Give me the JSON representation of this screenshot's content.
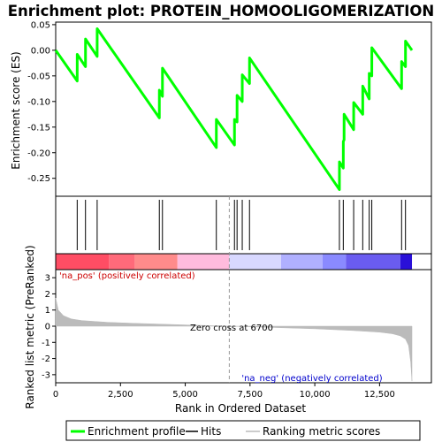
{
  "chart_data": {
    "type": "line",
    "title": "Enrichment plot: PROTEIN_HOMOOLIGOMERIZATION",
    "x_axis": {
      "label": "Rank in Ordered Dataset",
      "range": [
        0,
        14500
      ],
      "ticks": [
        0,
        2500,
        5000,
        7500,
        10000,
        12500
      ],
      "tick_labels": [
        "0",
        "2,500",
        "5,000",
        "7,500",
        "10,000",
        "12,500"
      ]
    },
    "es_panel": {
      "ylabel": "Enrichment score (ES)",
      "ylim": [
        -0.285,
        0.055
      ],
      "yticks": [
        0.05,
        0.0,
        -0.05,
        -0.1,
        -0.15,
        -0.2,
        -0.25
      ],
      "ytick_labels": [
        "0.05",
        "0.00",
        "-0.05",
        "-0.10",
        "-0.15",
        "-0.20",
        "-0.25"
      ],
      "line_color": "#00ff00",
      "series": [
        {
          "name": "Enrichment profile",
          "x": [
            0,
            830,
            831,
            1150,
            1151,
            1600,
            1601,
            4000,
            4001,
            4120,
            4121,
            6200,
            6201,
            6900,
            6901,
            7000,
            7001,
            7200,
            7201,
            7480,
            7481,
            10950,
            10951,
            11100,
            11101,
            11130,
            11131,
            11500,
            11501,
            11850,
            11851,
            12100,
            12101,
            12200,
            12201,
            13350,
            13351,
            13500,
            13501,
            13750
          ],
          "y": [
            0.0,
            -0.06,
            -0.008,
            -0.032,
            0.022,
            -0.012,
            0.042,
            -0.132,
            -0.078,
            -0.09,
            -0.035,
            -0.19,
            -0.135,
            -0.185,
            -0.135,
            -0.14,
            -0.088,
            -0.1,
            -0.048,
            -0.065,
            -0.015,
            -0.272,
            -0.218,
            -0.23,
            -0.178,
            -0.175,
            -0.125,
            -0.155,
            -0.102,
            -0.125,
            -0.07,
            -0.095,
            -0.045,
            -0.05,
            0.005,
            -0.075,
            -0.022,
            -0.032,
            0.018,
            0.0
          ]
        }
      ]
    },
    "hits_panel": {
      "hit_ranks": [
        830,
        1150,
        1600,
        4000,
        4120,
        6200,
        6900,
        7000,
        7200,
        7480,
        10950,
        11100,
        11500,
        11850,
        12100,
        12200,
        13350,
        13500
      ]
    },
    "heatmap_bar": {
      "segments": [
        {
          "start": 0,
          "end": 2050,
          "color": "#ff4d64"
        },
        {
          "start": 2050,
          "end": 3050,
          "color": "#ff6a7a"
        },
        {
          "start": 3050,
          "end": 4700,
          "color": "#ff8b8b"
        },
        {
          "start": 4700,
          "end": 6700,
          "color": "#ffbbdd"
        },
        {
          "start": 6700,
          "end": 8700,
          "color": "#d8d8ff"
        },
        {
          "start": 8700,
          "end": 10300,
          "color": "#b0b0ff"
        },
        {
          "start": 10300,
          "end": 11200,
          "color": "#8a8aff"
        },
        {
          "start": 11200,
          "end": 13300,
          "color": "#6a5cf0"
        },
        {
          "start": 13300,
          "end": 13750,
          "color": "#2a10d8"
        }
      ]
    },
    "metric_panel": {
      "ylabel": "Ranked list metric (PreRanked)",
      "ylim": [
        -3.5,
        3.5
      ],
      "yticks": [
        3,
        2,
        1,
        0,
        -1,
        -2,
        -3
      ],
      "ytick_labels": [
        "3",
        "2",
        "1",
        "0",
        "-1",
        "-2",
        "-3"
      ],
      "fill_color": "#bbbbbb",
      "metric_curve": {
        "x": [
          0,
          100,
          300,
          600,
          1000,
          2000,
          3000,
          5000,
          6700,
          8000,
          10000,
          11500,
          12500,
          13000,
          13300,
          13500,
          13620,
          13700,
          13750
        ],
        "y": [
          1.75,
          1.0,
          0.65,
          0.45,
          0.35,
          0.24,
          0.18,
          0.08,
          0.0,
          -0.06,
          -0.16,
          -0.27,
          -0.37,
          -0.47,
          -0.6,
          -0.8,
          -1.2,
          -2.2,
          -3.4
        ]
      },
      "zero_cross": 6700,
      "zero_cross_label": "Zero cross at 6700",
      "pos_label": "'na_pos' (positively correlated)",
      "neg_label": "'na_neg' (negatively correlated)",
      "pos_label_color": "#cc0000",
      "neg_label_color": "#0000cc"
    },
    "legend": {
      "placement": "bottom",
      "entries": [
        {
          "label": "Enrichment profile",
          "color": "#00ff00"
        },
        {
          "label": "Hits",
          "color": "#000000"
        },
        {
          "label": "Ranking metric scores",
          "color": "#bbbbbb"
        }
      ]
    }
  }
}
